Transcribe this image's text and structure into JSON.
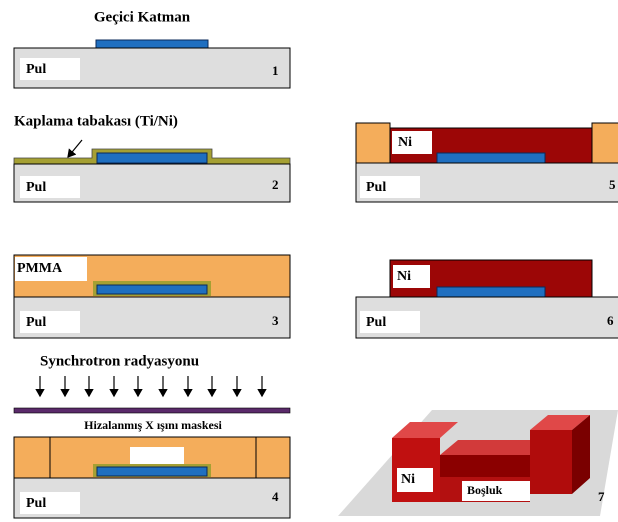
{
  "steps": [
    {
      "number": "1",
      "substrate": "Pul",
      "label": "Geçici Katman"
    },
    {
      "number": "2",
      "substrate": "Pul",
      "label": "Kaplama tabakası (Ti/Ni)"
    },
    {
      "number": "3",
      "substrate": "Pul",
      "label": "PMMA"
    },
    {
      "number": "4",
      "substrate": "Pul",
      "label": "Synchrotron radyasyonu",
      "mask": "Hizalanmış X ışını maskesi"
    },
    {
      "number": "5",
      "substrate": "Pul",
      "label": "Ni"
    },
    {
      "number": "6",
      "substrate": "Pul",
      "label": "Ni"
    },
    {
      "number": "7",
      "label": "Ni",
      "cavity": "Boşluk"
    }
  ]
}
